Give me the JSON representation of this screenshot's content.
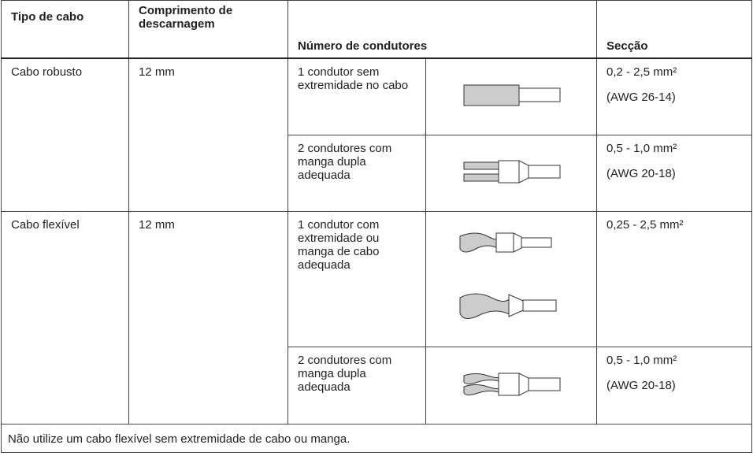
{
  "table": {
    "header": [
      "Tipo de cabo",
      "Comprimento de descarnagem",
      "Número de condutores",
      "Secção"
    ],
    "groups": [
      {
        "cable_type": "Cabo robusto",
        "strip_length": "12 mm",
        "rows": [
          {
            "conductors": "1 condutor sem extremidade no cabo",
            "section": [
              "0,2 - 2,5 mm²",
              "(AWG 26-14)"
            ]
          },
          {
            "conductors": "2 condutores com manga dupla adequada",
            "section": [
              "0,5 - 1,0 mm²",
              "(AWG 20-18)"
            ]
          }
        ]
      },
      {
        "cable_type": "Cabo flexível",
        "strip_length": "12 mm",
        "rows": [
          {
            "conductors": "1 condutor com extremidade ou manga de cabo adequada",
            "section": [
              "0,25 - 2,5 mm²"
            ]
          },
          {
            "conductors": "2 condutores com manga dupla adequada",
            "section": [
              "0,5 - 1,0 mm²",
              "(AWG 20-18)"
            ]
          }
        ]
      }
    ]
  },
  "note": "Não utilize um cabo flexível sem extremidade de cabo ou manga."
}
